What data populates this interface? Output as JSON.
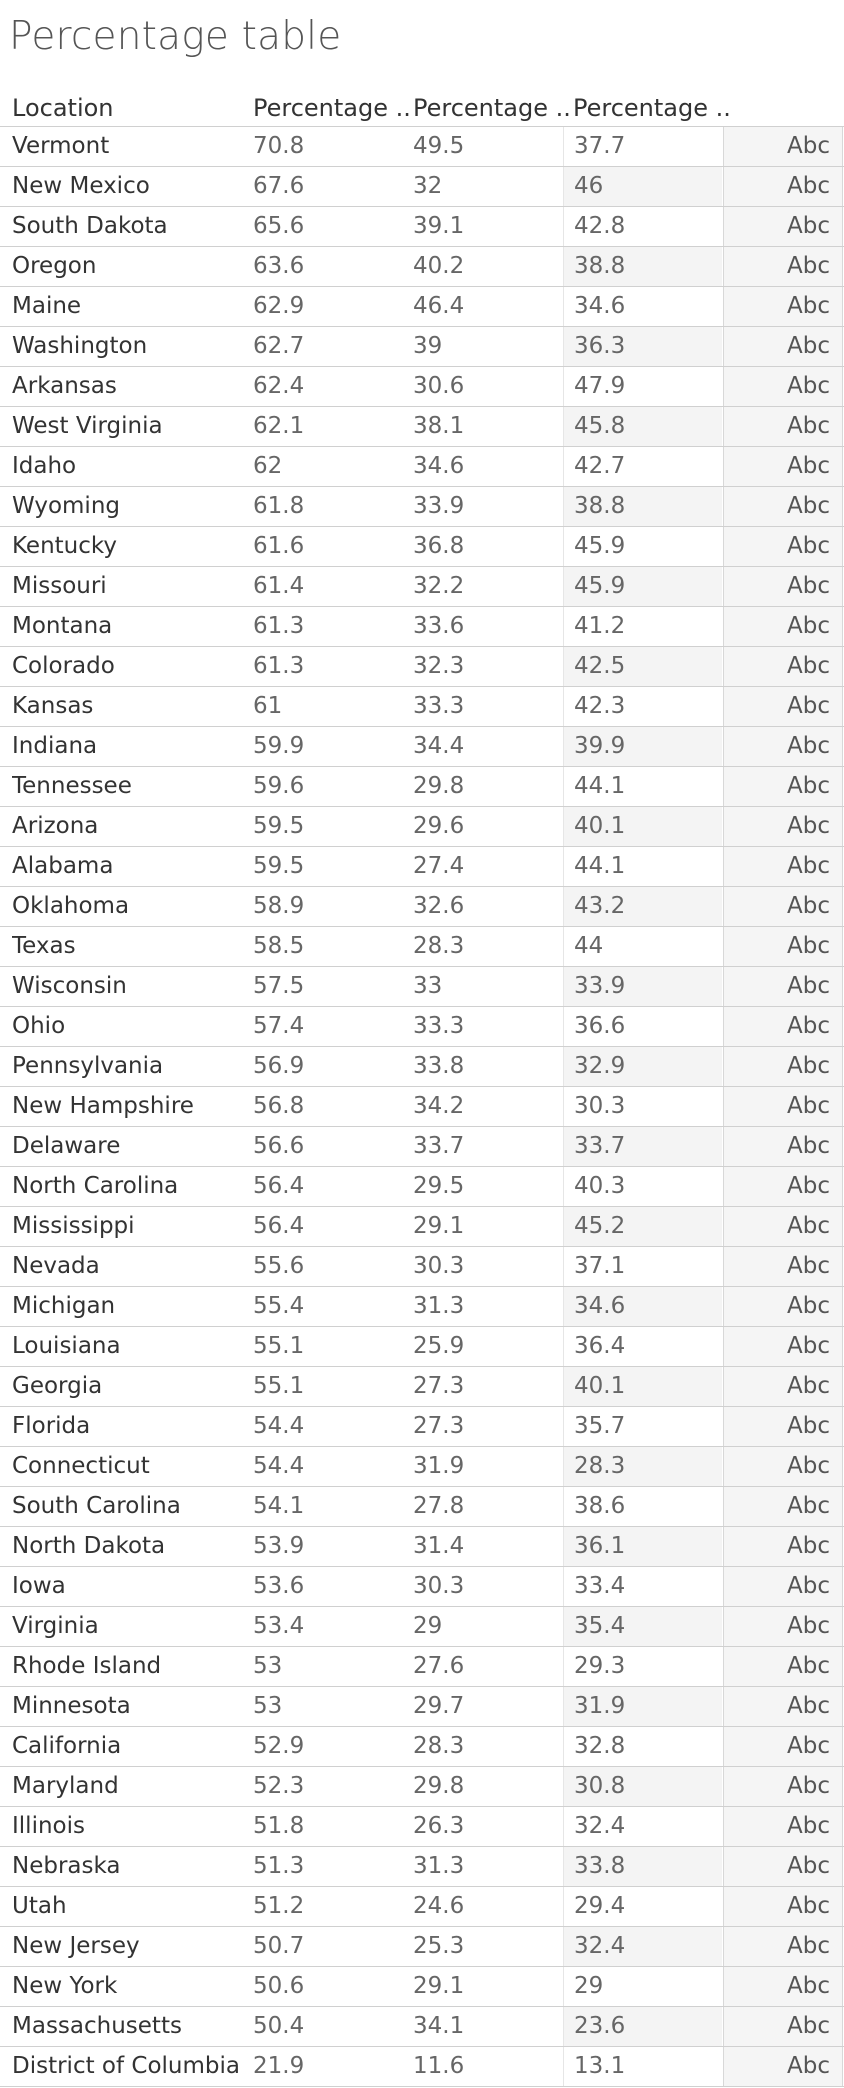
{
  "title": "Percentage table",
  "chart_data": {
    "type": "table",
    "columns": [
      "Location",
      "Percentage ..",
      "Percentage ..",
      "Percentage ..",
      ""
    ],
    "abc_label": "Abc",
    "rows": [
      {
        "location": "Vermont",
        "p1": "70.8",
        "p2": "49.5",
        "p3": "37.7"
      },
      {
        "location": "New Mexico",
        "p1": "67.6",
        "p2": "32",
        "p3": "46"
      },
      {
        "location": "South Dakota",
        "p1": "65.6",
        "p2": "39.1",
        "p3": "42.8"
      },
      {
        "location": "Oregon",
        "p1": "63.6",
        "p2": "40.2",
        "p3": "38.8"
      },
      {
        "location": "Maine",
        "p1": "62.9",
        "p2": "46.4",
        "p3": "34.6"
      },
      {
        "location": "Washington",
        "p1": "62.7",
        "p2": "39",
        "p3": "36.3"
      },
      {
        "location": "Arkansas",
        "p1": "62.4",
        "p2": "30.6",
        "p3": "47.9"
      },
      {
        "location": "West Virginia",
        "p1": "62.1",
        "p2": "38.1",
        "p3": "45.8"
      },
      {
        "location": "Idaho",
        "p1": "62",
        "p2": "34.6",
        "p3": "42.7"
      },
      {
        "location": "Wyoming",
        "p1": "61.8",
        "p2": "33.9",
        "p3": "38.8"
      },
      {
        "location": "Kentucky",
        "p1": "61.6",
        "p2": "36.8",
        "p3": "45.9"
      },
      {
        "location": "Missouri",
        "p1": "61.4",
        "p2": "32.2",
        "p3": "45.9"
      },
      {
        "location": "Montana",
        "p1": "61.3",
        "p2": "33.6",
        "p3": "41.2"
      },
      {
        "location": "Colorado",
        "p1": "61.3",
        "p2": "32.3",
        "p3": "42.5"
      },
      {
        "location": "Kansas",
        "p1": "61",
        "p2": "33.3",
        "p3": "42.3"
      },
      {
        "location": "Indiana",
        "p1": "59.9",
        "p2": "34.4",
        "p3": "39.9"
      },
      {
        "location": "Tennessee",
        "p1": "59.6",
        "p2": "29.8",
        "p3": "44.1"
      },
      {
        "location": "Arizona",
        "p1": "59.5",
        "p2": "29.6",
        "p3": "40.1"
      },
      {
        "location": "Alabama",
        "p1": "59.5",
        "p2": "27.4",
        "p3": "44.1"
      },
      {
        "location": "Oklahoma",
        "p1": "58.9",
        "p2": "32.6",
        "p3": "43.2"
      },
      {
        "location": "Texas",
        "p1": "58.5",
        "p2": "28.3",
        "p3": "44"
      },
      {
        "location": "Wisconsin",
        "p1": "57.5",
        "p2": "33",
        "p3": "33.9"
      },
      {
        "location": "Ohio",
        "p1": "57.4",
        "p2": "33.3",
        "p3": "36.6"
      },
      {
        "location": "Pennsylvania",
        "p1": "56.9",
        "p2": "33.8",
        "p3": "32.9"
      },
      {
        "location": "New Hampshire",
        "p1": "56.8",
        "p2": "34.2",
        "p3": "30.3"
      },
      {
        "location": "Delaware",
        "p1": "56.6",
        "p2": "33.7",
        "p3": "33.7"
      },
      {
        "location": "North Carolina",
        "p1": "56.4",
        "p2": "29.5",
        "p3": "40.3"
      },
      {
        "location": "Mississippi",
        "p1": "56.4",
        "p2": "29.1",
        "p3": "45.2"
      },
      {
        "location": "Nevada",
        "p1": "55.6",
        "p2": "30.3",
        "p3": "37.1"
      },
      {
        "location": "Michigan",
        "p1": "55.4",
        "p2": "31.3",
        "p3": "34.6"
      },
      {
        "location": "Louisiana",
        "p1": "55.1",
        "p2": "25.9",
        "p3": "36.4"
      },
      {
        "location": "Georgia",
        "p1": "55.1",
        "p2": "27.3",
        "p3": "40.1"
      },
      {
        "location": "Florida",
        "p1": "54.4",
        "p2": "27.3",
        "p3": "35.7"
      },
      {
        "location": "Connecticut",
        "p1": "54.4",
        "p2": "31.9",
        "p3": "28.3"
      },
      {
        "location": "South Carolina",
        "p1": "54.1",
        "p2": "27.8",
        "p3": "38.6"
      },
      {
        "location": "North Dakota",
        "p1": "53.9",
        "p2": "31.4",
        "p3": "36.1"
      },
      {
        "location": "Iowa",
        "p1": "53.6",
        "p2": "30.3",
        "p3": "33.4"
      },
      {
        "location": "Virginia",
        "p1": "53.4",
        "p2": "29",
        "p3": "35.4"
      },
      {
        "location": "Rhode Island",
        "p1": "53",
        "p2": "27.6",
        "p3": "29.3"
      },
      {
        "location": "Minnesota",
        "p1": "53",
        "p2": "29.7",
        "p3": "31.9"
      },
      {
        "location": "California",
        "p1": "52.9",
        "p2": "28.3",
        "p3": "32.8"
      },
      {
        "location": "Maryland",
        "p1": "52.3",
        "p2": "29.8",
        "p3": "30.8"
      },
      {
        "location": "Illinois",
        "p1": "51.8",
        "p2": "26.3",
        "p3": "32.4"
      },
      {
        "location": "Nebraska",
        "p1": "51.3",
        "p2": "31.3",
        "p3": "33.8"
      },
      {
        "location": "Utah",
        "p1": "51.2",
        "p2": "24.6",
        "p3": "29.4"
      },
      {
        "location": "New Jersey",
        "p1": "50.7",
        "p2": "25.3",
        "p3": "32.4"
      },
      {
        "location": "New York",
        "p1": "50.6",
        "p2": "29.1",
        "p3": "29"
      },
      {
        "location": "Massachusetts",
        "p1": "50.4",
        "p2": "34.1",
        "p3": "23.6"
      },
      {
        "location": "District of Columbia",
        "p1": "21.9",
        "p2": "11.6",
        "p3": "13.1"
      }
    ]
  }
}
